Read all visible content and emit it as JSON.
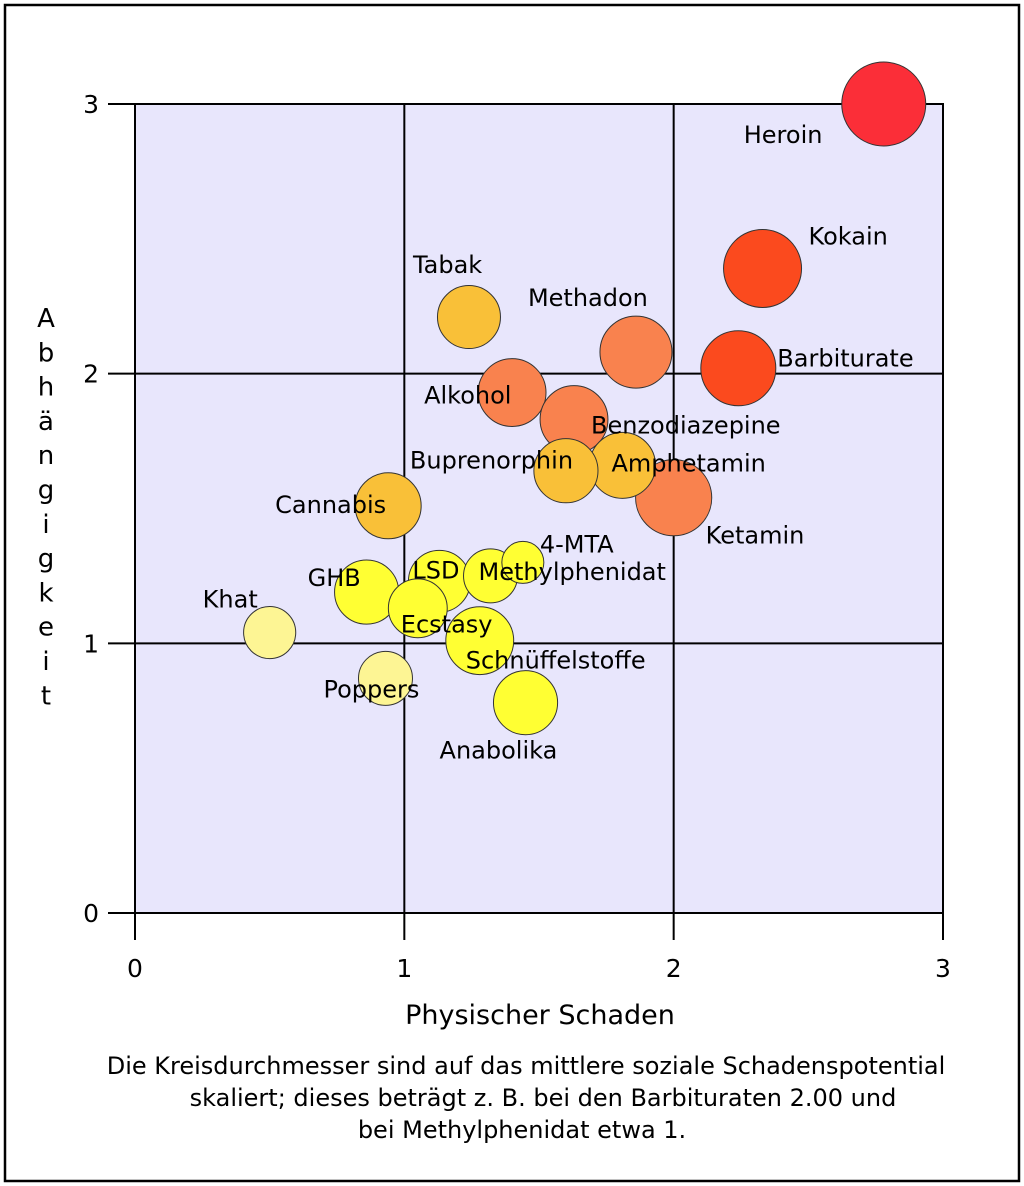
{
  "chart_data": {
    "type": "scatter",
    "subtype": "bubble",
    "xlabel": "Physischer Schaden",
    "ylabel": "Abhängigkeit",
    "xlim": [
      0,
      3
    ],
    "ylim": [
      0,
      3
    ],
    "xticks": [
      "0",
      "1",
      "2",
      "3"
    ],
    "yticks": [
      "0",
      "1",
      "2",
      "3"
    ],
    "grid": true,
    "plot_background": "#e8e6fc",
    "caption": [
      "Die Kreisdurchmesser sind auf das mittlere soziale Schadenspotential",
      "skaliert; dieses beträgt z. B. bei den Barbituraten 2.00 und",
      "bei Methylphenidat etwa 1."
    ],
    "points": [
      {
        "name": "Heroin",
        "x": 2.78,
        "y": 3.0,
        "size": 2.24,
        "color": "#fb2e38"
      },
      {
        "name": "Kokain",
        "x": 2.33,
        "y": 2.39,
        "size": 2.08,
        "color": "#fb4a1e"
      },
      {
        "name": "Barbiturate",
        "x": 2.24,
        "y": 2.02,
        "size": 2.0,
        "color": "#fb4a1e"
      },
      {
        "name": "Methadon",
        "x": 1.86,
        "y": 2.08,
        "size": 1.92,
        "color": "#f9824e"
      },
      {
        "name": "Tabak",
        "x": 1.24,
        "y": 2.21,
        "size": 1.68,
        "color": "#f9c038"
      },
      {
        "name": "Alkohol",
        "x": 1.4,
        "y": 1.93,
        "size": 1.81,
        "color": "#f9824e"
      },
      {
        "name": "Benzodiazepine",
        "x": 1.63,
        "y": 1.83,
        "size": 1.81,
        "color": "#f9824e"
      },
      {
        "name": "Ketamin",
        "x": 2.0,
        "y": 1.54,
        "size": 2.03,
        "color": "#f9824e"
      },
      {
        "name": "Amphetamin",
        "x": 1.81,
        "y": 1.66,
        "size": 1.76,
        "color": "#f9c038"
      },
      {
        "name": "Buprenorphin",
        "x": 1.6,
        "y": 1.64,
        "size": 1.71,
        "color": "#f9c038"
      },
      {
        "name": "Cannabis",
        "x": 0.94,
        "y": 1.51,
        "size": 1.76,
        "color": "#f9c038"
      },
      {
        "name": "GHB",
        "x": 0.86,
        "y": 1.19,
        "size": 1.71,
        "color": "#ffff33"
      },
      {
        "name": "LSD",
        "x": 1.13,
        "y": 1.23,
        "size": 1.65,
        "color": "#ffff33"
      },
      {
        "name": "Methylphenidat",
        "x": 1.32,
        "y": 1.25,
        "size": 1.44,
        "color": "#ffff33"
      },
      {
        "name": "4-MTA",
        "x": 1.44,
        "y": 1.3,
        "size": 1.12,
        "color": "#ffff33"
      },
      {
        "name": "Ecstasy",
        "x": 1.05,
        "y": 1.13,
        "size": 1.57,
        "color": "#ffff33"
      },
      {
        "name": "Khat",
        "x": 0.5,
        "y": 1.04,
        "size": 1.39,
        "color": "#fdf594"
      },
      {
        "name": "Schnüffelstoffe",
        "x": 1.28,
        "y": 1.01,
        "size": 1.81,
        "color": "#ffff33"
      },
      {
        "name": "Poppers",
        "x": 0.93,
        "y": 0.87,
        "size": 1.44,
        "color": "#fdf594"
      },
      {
        "name": "Anabolika",
        "x": 1.45,
        "y": 0.78,
        "size": 1.71,
        "color": "#ffff33"
      }
    ]
  }
}
